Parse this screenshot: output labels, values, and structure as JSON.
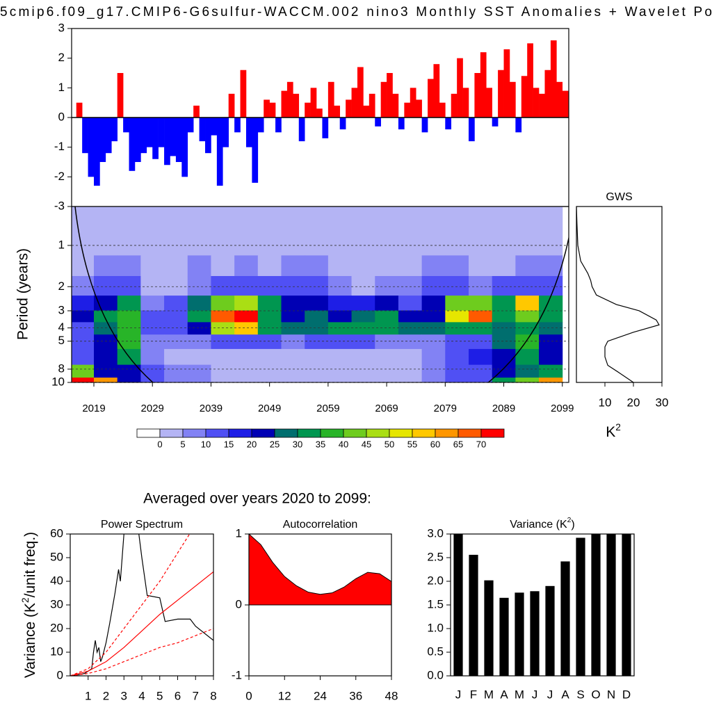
{
  "subtitle": "Averaged over years 2020 to 2099:",
  "chart_data": [
    {
      "type": "bar",
      "title": "5cmip6.f09_g17.CMIP6-G6sulfur-WACCM.002 nino3 Monthly SST Anomalies + Wavelet Po",
      "x": [
        2016,
        2017,
        2018,
        2019,
        2020,
        2021,
        2022,
        2023,
        2024,
        2025,
        2026,
        2027,
        2028,
        2029,
        2030,
        2031,
        2032,
        2033,
        2034,
        2035,
        2036,
        2037,
        2038,
        2039,
        2040,
        2041,
        2042,
        2043,
        2044,
        2045,
        2046,
        2047,
        2048,
        2049,
        2050,
        2051,
        2052,
        2053,
        2054,
        2055,
        2056,
        2057,
        2058,
        2059,
        2060,
        2061,
        2062,
        2063,
        2064,
        2065,
        2066,
        2067,
        2068,
        2069,
        2070,
        2071,
        2072,
        2073,
        2074,
        2075,
        2076,
        2077,
        2078,
        2079,
        2080,
        2081,
        2082,
        2083,
        2084,
        2085,
        2086,
        2087,
        2088,
        2089,
        2090,
        2091,
        2092,
        2093,
        2094,
        2095,
        2096,
        2097,
        2098,
        2099
      ],
      "values": [
        0.5,
        -1.2,
        -2.0,
        -2.3,
        -1.5,
        -1.2,
        -0.8,
        1.5,
        -0.5,
        -1.8,
        -1.5,
        -1.2,
        -1.0,
        -1.4,
        -1.0,
        -1.6,
        -1.3,
        -1.5,
        -2.0,
        -0.5,
        0.4,
        -0.8,
        -1.2,
        -0.6,
        -2.3,
        -1.0,
        0.8,
        -0.5,
        1.6,
        -1.0,
        -2.2,
        -0.5,
        0.6,
        0.5,
        -0.5,
        0.9,
        1.2,
        0.8,
        -0.8,
        0.5,
        1.0,
        0.3,
        -0.7,
        1.2,
        0.4,
        -0.4,
        0.6,
        1.0,
        1.7,
        0.4,
        0.8,
        -0.3,
        1.2,
        1.5,
        0.8,
        -0.4,
        0.5,
        1.0,
        0.6,
        -0.5,
        1.3,
        1.8,
        0.5,
        -0.4,
        0.8,
        2.0,
        1.0,
        -0.8,
        1.5,
        2.2,
        1.0,
        -0.3,
        1.6,
        2.3,
        1.2,
        -0.5,
        1.4,
        2.5,
        1.0,
        0.8,
        1.6,
        2.6,
        1.2,
        0.9
      ],
      "color_positive": "#ff0000",
      "color_negative": "#0000ff",
      "xlim": [
        2015.2,
        2100.1
      ],
      "ylim": [
        -3,
        3
      ],
      "yticks": [
        -3,
        -2,
        -1,
        0,
        1,
        2,
        3
      ]
    },
    {
      "type": "contour",
      "ylabel": "Period (years)",
      "x": [
        2017,
        2021,
        2025,
        2029,
        2033,
        2037,
        2041,
        2045,
        2049,
        2053,
        2057,
        2061,
        2065,
        2069,
        2073,
        2077,
        2081,
        2085,
        2089,
        2093,
        2097
      ],
      "y": [
        0.6,
        1,
        1.4,
        2,
        2.7,
        3.3,
        4,
        5,
        6.5,
        8.5,
        10
      ],
      "z": [
        [
          2,
          2,
          2,
          2,
          2,
          2,
          2,
          2,
          2,
          2,
          2,
          2,
          2,
          2,
          2,
          2,
          2,
          2,
          2,
          2,
          2
        ],
        [
          2,
          2,
          2,
          2,
          2,
          2,
          2,
          2,
          2,
          2,
          2,
          2,
          2,
          2,
          2,
          2,
          2,
          2,
          2,
          2,
          2
        ],
        [
          2,
          6,
          7,
          3,
          2,
          6,
          3,
          7,
          4,
          6,
          7,
          3,
          2,
          3,
          2,
          6,
          6,
          3,
          3,
          6,
          7
        ],
        [
          8,
          12,
          14,
          4,
          3,
          8,
          10,
          12,
          14,
          12,
          10,
          8,
          4,
          8,
          6,
          12,
          10,
          8,
          12,
          14,
          12
        ],
        [
          18,
          24,
          32,
          8,
          10,
          26,
          40,
          45,
          30,
          22,
          20,
          16,
          18,
          20,
          14,
          22,
          40,
          40,
          30,
          55,
          30
        ],
        [
          20,
          30,
          38,
          10,
          14,
          30,
          65,
          75,
          32,
          20,
          26,
          24,
          26,
          30,
          24,
          24,
          50,
          65,
          30,
          40,
          30
        ],
        [
          14,
          26,
          38,
          10,
          10,
          20,
          45,
          55,
          30,
          26,
          28,
          30,
          32,
          30,
          26,
          26,
          34,
          34,
          28,
          30,
          26
        ],
        [
          12,
          20,
          36,
          8,
          6,
          8,
          10,
          10,
          10,
          8,
          10,
          12,
          10,
          8,
          8,
          8,
          10,
          14,
          26,
          35,
          22
        ],
        [
          14,
          22,
          32,
          6,
          4,
          3,
          2,
          2,
          2,
          2,
          2,
          3,
          3,
          3,
          3,
          6,
          14,
          18,
          22,
          30,
          22
        ],
        [
          40,
          20,
          24,
          14,
          8,
          6,
          4,
          3,
          3,
          3,
          3,
          3,
          3,
          3,
          4,
          6,
          10,
          14,
          20,
          28,
          30
        ],
        [
          70,
          60,
          24,
          14,
          8,
          6,
          4,
          3,
          3,
          3,
          3,
          3,
          3,
          3,
          4,
          6,
          10,
          14,
          30,
          40,
          60
        ]
      ],
      "xlim": [
        2015.2,
        2100.1
      ],
      "xticks": [
        2019,
        2029,
        2039,
        2049,
        2059,
        2069,
        2079,
        2089,
        2099
      ],
      "ylim": [
        0.52,
        10
      ],
      "yscale": "log",
      "yreverse": true,
      "yticks": [
        1,
        2,
        3,
        4,
        5,
        8,
        10
      ],
      "grid": true,
      "colorbar": {
        "levels": [
          0,
          5,
          10,
          15,
          20,
          25,
          30,
          35,
          40,
          45,
          50,
          55,
          60,
          65,
          70
        ],
        "colors": [
          "#ffffff",
          "#b4b4f4",
          "#8282f4",
          "#5050f4",
          "#1e1ee6",
          "#0000b4",
          "#006e6e",
          "#009650",
          "#28b428",
          "#6ecc1e",
          "#aade14",
          "#e6e600",
          "#ffc800",
          "#ff9600",
          "#ff5a00",
          "#ff0000"
        ]
      }
    },
    {
      "type": "line",
      "title": "GWS",
      "orientation": "horizontal",
      "xlabel": "K",
      "xlabel_sup": "2",
      "y": [
        0.52,
        0.7,
        1,
        1.3,
        1.6,
        1.8,
        2,
        2.3,
        2.7,
        3,
        3.5,
        3.8,
        4.3,
        5,
        5.5,
        6.5,
        7.5,
        8.5,
        10
      ],
      "series": [
        {
          "color": "#000000",
          "values": [
            0,
            0.2,
            0.5,
            1.5,
            4,
            5,
            5.5,
            7,
            14,
            22,
            28,
            29,
            20,
            11,
            10,
            10,
            11,
            15,
            20
          ]
        }
      ],
      "xlim": [
        0,
        30
      ],
      "xticks": [
        10,
        20,
        30
      ],
      "ylim": [
        0.52,
        10
      ],
      "yscale": "log",
      "yreverse": true
    },
    {
      "type": "line",
      "title": "Power Spectrum",
      "ylabel": "Variance (K",
      "ylabel_sup": "2",
      "ylabel_end": "/unit freq.)",
      "series": [
        {
          "color": "#000000",
          "x": [
            0,
            0.5,
            0.8,
            1,
            1.2,
            1.3,
            1.4,
            1.5,
            1.6,
            1.7,
            1.8,
            2,
            2.2,
            2.5,
            2.7,
            2.8,
            3,
            3.2,
            3.5,
            3.8,
            4,
            4.3,
            5,
            5.3,
            6,
            6.7,
            7,
            8
          ],
          "values": [
            0,
            0.5,
            1,
            2,
            3,
            10,
            15,
            10,
            12,
            6,
            8,
            14,
            22,
            35,
            45,
            40,
            60,
            80,
            75,
            62,
            50,
            34,
            33,
            23,
            24,
            24,
            21,
            15
          ]
        },
        {
          "color": "#ff0000",
          "x": [
            0,
            1,
            2,
            3,
            4,
            5,
            6,
            7,
            8
          ],
          "values": [
            0,
            2,
            6,
            12,
            19,
            26,
            32,
            38,
            44
          ]
        },
        {
          "color": "#ff0000",
          "dash": true,
          "x": [
            0,
            1,
            2,
            3,
            4,
            5,
            6,
            7,
            8
          ],
          "values": [
            0,
            3,
            10,
            20,
            30,
            40,
            52,
            64,
            76
          ]
        },
        {
          "color": "#ff0000",
          "dash": true,
          "x": [
            0,
            1,
            2,
            3,
            4,
            5,
            6,
            7,
            8
          ],
          "values": [
            0,
            1,
            3,
            6,
            9,
            12,
            14,
            17,
            20
          ]
        }
      ],
      "xlim": [
        0,
        8
      ],
      "xticks": [
        1,
        2,
        3,
        4,
        5,
        6,
        7,
        8
      ],
      "ylim": [
        0,
        60
      ],
      "yticks": [
        0,
        10,
        20,
        30,
        40,
        50,
        60
      ]
    },
    {
      "type": "area",
      "title": "Autocorrelation",
      "color": "#ff0000",
      "x": [
        0,
        4,
        8,
        12,
        16,
        20,
        24,
        28,
        32,
        36,
        40,
        44,
        48
      ],
      "values": [
        1,
        0.85,
        0.6,
        0.4,
        0.27,
        0.18,
        0.15,
        0.17,
        0.25,
        0.37,
        0.46,
        0.44,
        0.33
      ],
      "xlim": [
        0,
        48
      ],
      "xticks": [
        0,
        12,
        24,
        36,
        48
      ],
      "ylim": [
        -1,
        1
      ],
      "yticks": [
        -1,
        0,
        1
      ]
    },
    {
      "type": "bar",
      "title": "Variance (K",
      "title_sup": "2",
      "title_end": ")",
      "color": "#000000",
      "categories": [
        "J",
        "F",
        "M",
        "A",
        "M",
        "J",
        "J",
        "A",
        "S",
        "O",
        "N",
        "D"
      ],
      "values": [
        3.2,
        2.56,
        2.02,
        1.65,
        1.76,
        1.79,
        1.9,
        2.42,
        2.92,
        3.1,
        3.1,
        3.1
      ],
      "ylim": [
        0,
        3
      ],
      "yticks": [
        {
          "value": 0,
          "label": "0.0"
        },
        {
          "value": 0.5,
          "label": "0.5"
        },
        {
          "value": 1,
          "label": "1.0"
        },
        {
          "value": 1.5,
          "label": "1.5"
        },
        {
          "value": 2,
          "label": "2.0"
        },
        {
          "value": 2.5,
          "label": "2.5"
        },
        {
          "value": 3,
          "label": "3.0"
        }
      ]
    }
  ]
}
